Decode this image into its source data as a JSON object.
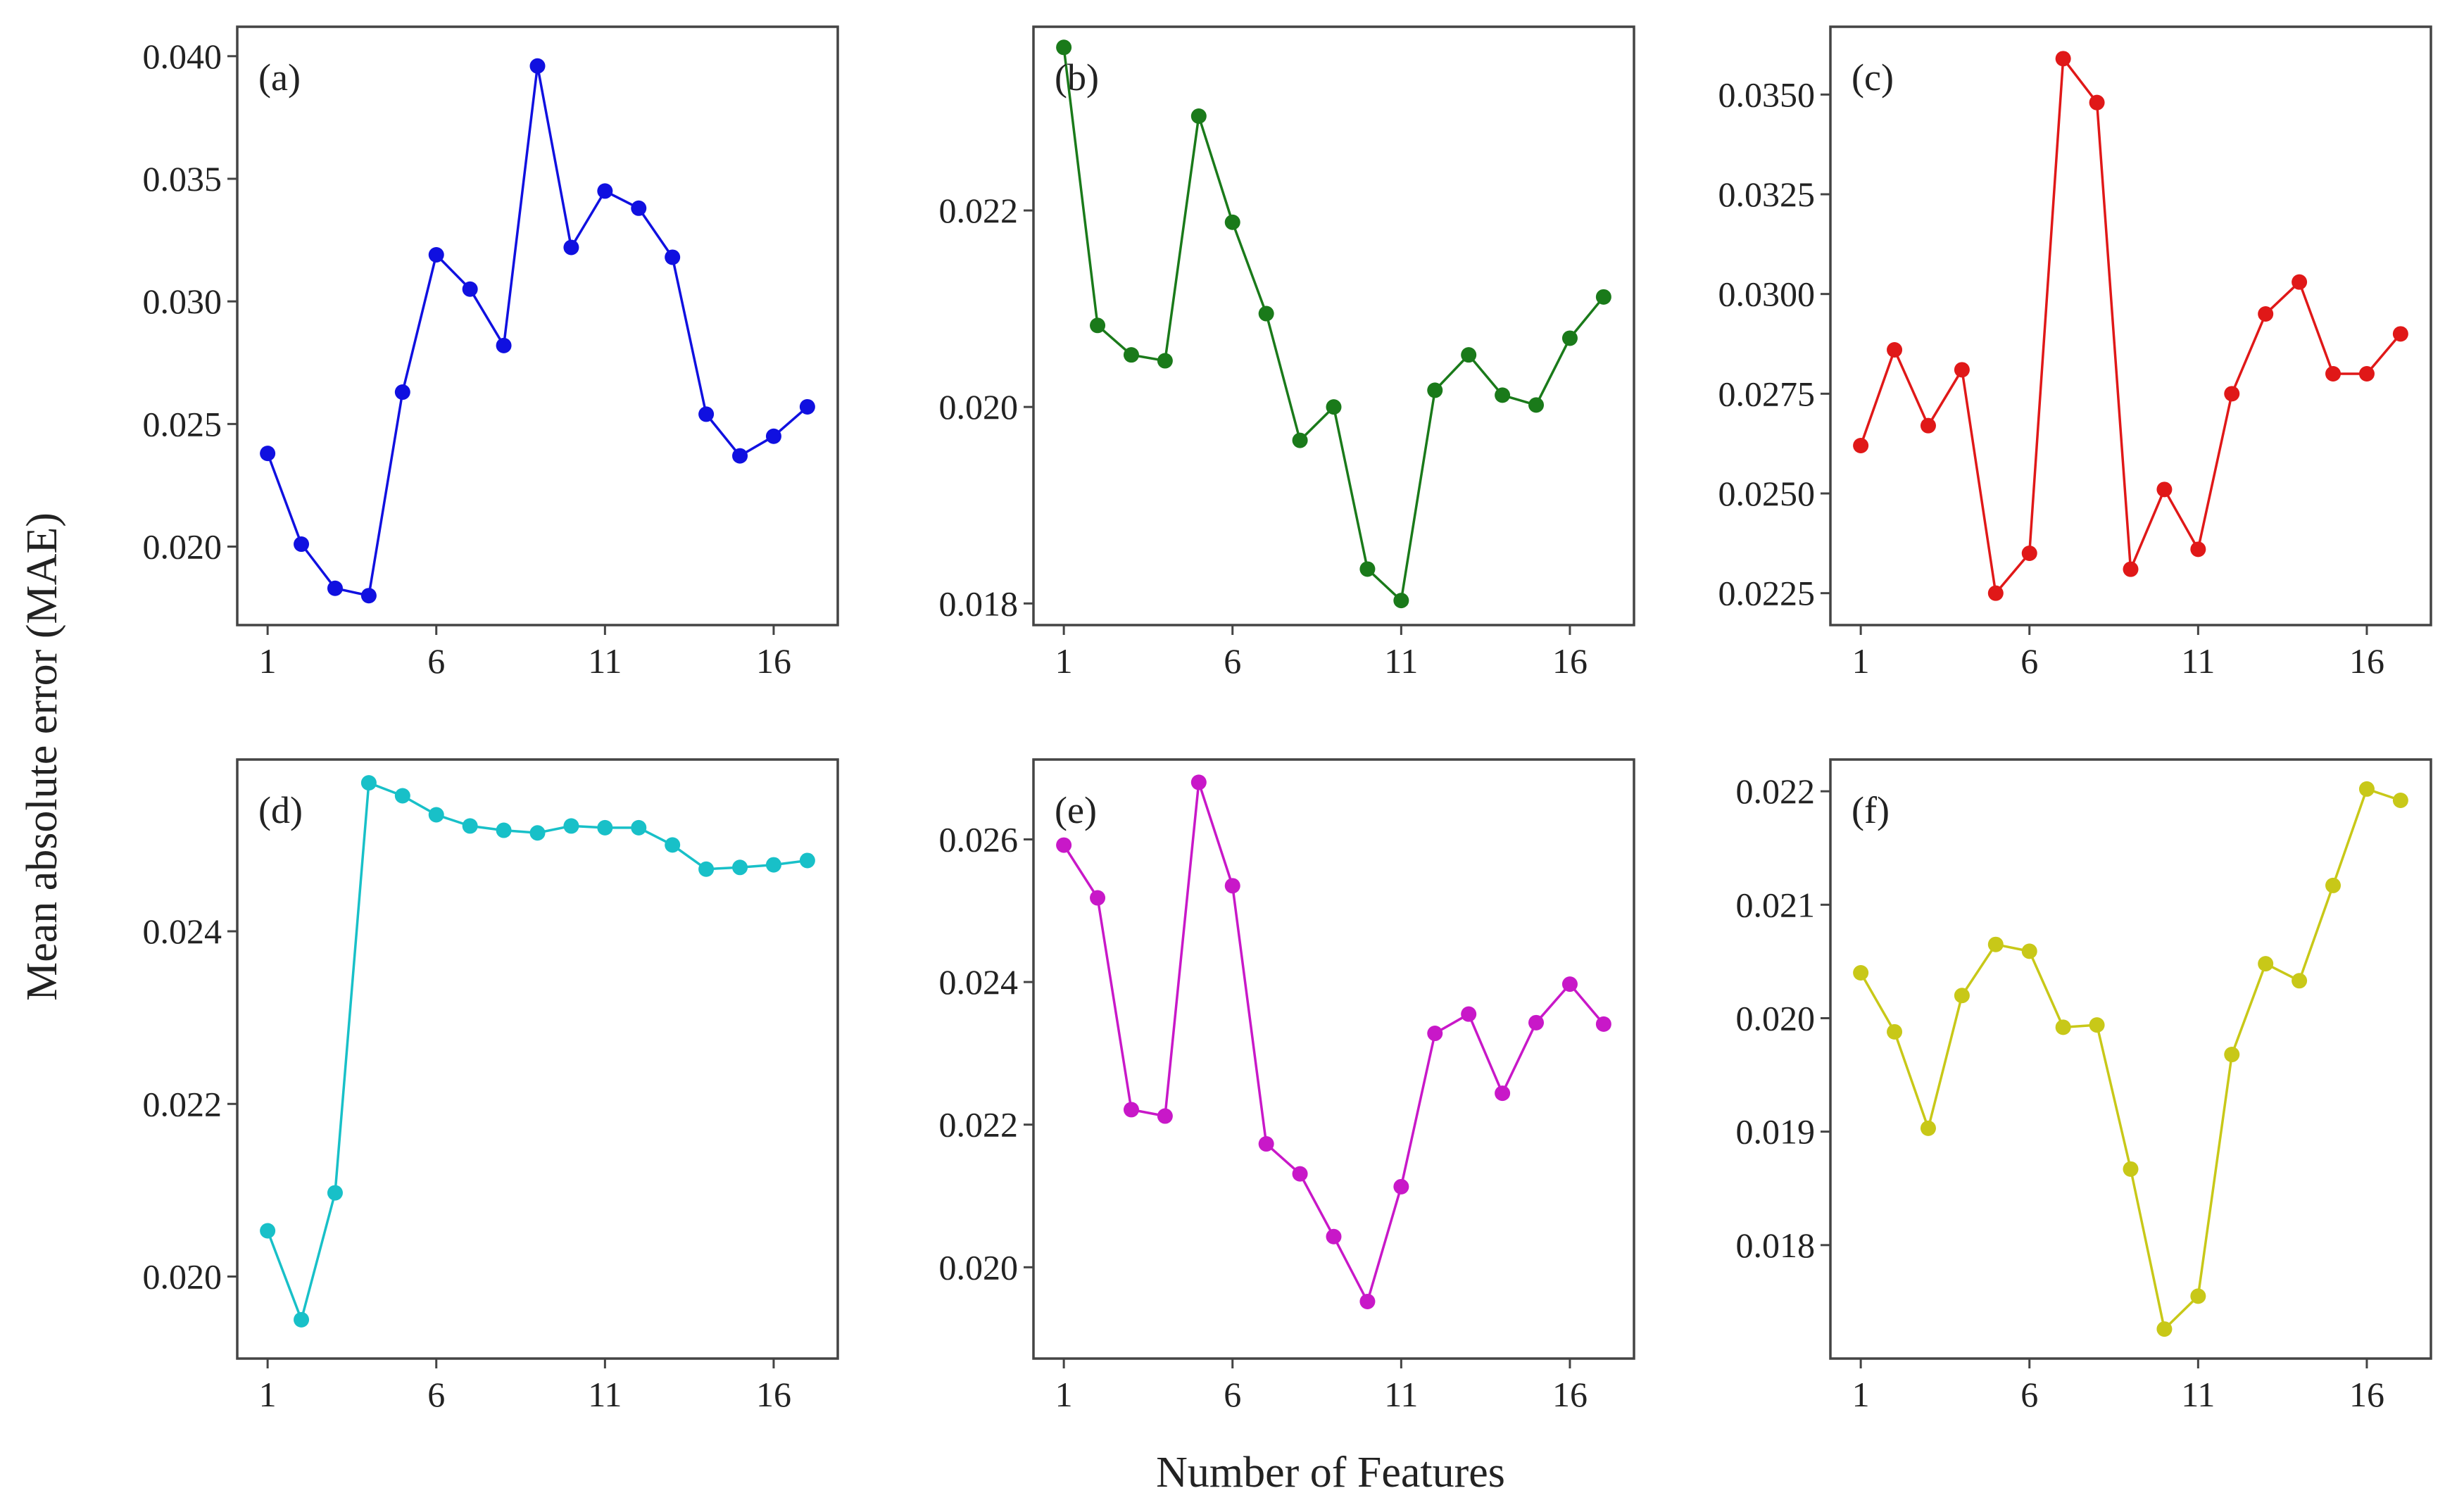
{
  "figure": {
    "xlabel": "Number  of  Features",
    "ylabel": "Mean absolute error (MAE)"
  },
  "chart_data": [
    {
      "type": "line",
      "title": "(a)",
      "color": "#1010e0",
      "x": [
        1,
        2,
        3,
        4,
        5,
        6,
        7,
        8,
        9,
        10,
        11,
        12,
        13,
        14,
        15,
        16,
        17
      ],
      "values": [
        0.0238,
        0.0201,
        0.0183,
        0.018,
        0.0263,
        0.0319,
        0.0305,
        0.0282,
        0.0396,
        0.0322,
        0.0345,
        0.0338,
        0.0318,
        0.0254,
        0.0237,
        0.0245,
        0.0257
      ],
      "xlim": [
        0.1,
        17.9
      ],
      "ylim": [
        0.0168,
        0.0412
      ],
      "xticks": [
        1,
        6,
        11,
        16
      ],
      "xtick_labels": [
        "1",
        "6",
        "11",
        "16"
      ],
      "yticks": [
        0.02,
        0.025,
        0.03,
        0.035,
        0.04
      ],
      "ytick_labels": [
        "0.020",
        "0.025",
        "0.030",
        "0.035",
        "0.040"
      ]
    },
    {
      "type": "line",
      "title": "(b)",
      "color": "#1a7a1a",
      "x": [
        1,
        2,
        3,
        4,
        5,
        6,
        7,
        8,
        9,
        10,
        11,
        12,
        13,
        14,
        15,
        16,
        17
      ],
      "values": [
        0.02366,
        0.02083,
        0.02053,
        0.02047,
        0.02296,
        0.02188,
        0.02095,
        0.01966,
        0.02,
        0.01835,
        0.01803,
        0.02017,
        0.02053,
        0.02012,
        0.02002,
        0.0207,
        0.02112
      ],
      "xlim": [
        0.1,
        17.9
      ],
      "ylim": [
        0.01778,
        0.02387
      ],
      "xticks": [
        1,
        6,
        11,
        16
      ],
      "xtick_labels": [
        "1",
        "6",
        "11",
        "16"
      ],
      "yticks": [
        0.018,
        0.02,
        0.022
      ],
      "ytick_labels": [
        "0.018",
        "0.020",
        "0.022"
      ]
    },
    {
      "type": "line",
      "title": "(c)",
      "color": "#e01818",
      "x": [
        1,
        2,
        3,
        4,
        5,
        6,
        7,
        8,
        9,
        10,
        11,
        12,
        13,
        14,
        15,
        16,
        17
      ],
      "values": [
        0.0262,
        0.0286,
        0.0267,
        0.0281,
        0.0225,
        0.0235,
        0.0359,
        0.0348,
        0.0231,
        0.0251,
        0.0236,
        0.0275,
        0.0295,
        0.0303,
        0.028,
        0.028,
        0.029
      ],
      "xlim": [
        0.1,
        17.9
      ],
      "ylim": [
        0.0217,
        0.0367
      ],
      "xticks": [
        1,
        6,
        11,
        16
      ],
      "xtick_labels": [
        "1",
        "6",
        "11",
        "16"
      ],
      "yticks": [
        0.0225,
        0.025,
        0.0275,
        0.03,
        0.0325,
        0.035
      ],
      "ytick_labels": [
        "0.0225",
        "0.0250",
        "0.0275",
        "0.0300",
        "0.0325",
        "0.0350"
      ]
    },
    {
      "type": "line",
      "title": "(d)",
      "color": "#18c0c8",
      "x": [
        1,
        2,
        3,
        4,
        5,
        6,
        7,
        8,
        9,
        10,
        11,
        12,
        13,
        14,
        15,
        16,
        17
      ],
      "values": [
        0.02053,
        0.0195,
        0.02097,
        0.02572,
        0.02557,
        0.02535,
        0.02522,
        0.02517,
        0.02514,
        0.02522,
        0.0252,
        0.0252,
        0.025,
        0.02472,
        0.02474,
        0.02477,
        0.02482
      ],
      "xlim": [
        0.1,
        17.9
      ],
      "ylim": [
        0.01905,
        0.02599
      ],
      "xticks": [
        1,
        6,
        11,
        16
      ],
      "xtick_labels": [
        "1",
        "6",
        "11",
        "16"
      ],
      "yticks": [
        0.02,
        0.022,
        0.024
      ],
      "ytick_labels": [
        "0.020",
        "0.022",
        "0.024"
      ]
    },
    {
      "type": "line",
      "title": "(e)",
      "color": "#c818c8",
      "x": [
        1,
        2,
        3,
        4,
        5,
        6,
        7,
        8,
        9,
        10,
        11,
        12,
        13,
        14,
        15,
        16,
        17
      ],
      "values": [
        0.02592,
        0.02518,
        0.02221,
        0.02212,
        0.0268,
        0.02535,
        0.02173,
        0.02131,
        0.02043,
        0.01952,
        0.02113,
        0.02328,
        0.02355,
        0.02244,
        0.02343,
        0.02397,
        0.02341
      ],
      "xlim": [
        0.1,
        17.9
      ],
      "ylim": [
        0.01872,
        0.02712
      ],
      "xticks": [
        1,
        6,
        11,
        16
      ],
      "xtick_labels": [
        "1",
        "6",
        "11",
        "16"
      ],
      "yticks": [
        0.02,
        0.022,
        0.024,
        0.026
      ],
      "ytick_labels": [
        "0.020",
        "0.022",
        "0.024",
        "0.026"
      ]
    },
    {
      "type": "line",
      "title": "(f)",
      "color": "#c8c818",
      "x": [
        1,
        2,
        3,
        4,
        5,
        6,
        7,
        8,
        9,
        10,
        11,
        12,
        13,
        14,
        15,
        16,
        17
      ],
      "values": [
        0.0204,
        0.01988,
        0.01903,
        0.0202,
        0.02065,
        0.02059,
        0.01992,
        0.01994,
        0.01867,
        0.01726,
        0.01755,
        0.01968,
        0.02048,
        0.02033,
        0.02117,
        0.02202,
        0.02192
      ],
      "xlim": [
        0.1,
        17.9
      ],
      "ylim": [
        0.017,
        0.02228
      ],
      "xticks": [
        1,
        6,
        11,
        16
      ],
      "xtick_labels": [
        "1",
        "6",
        "11",
        "16"
      ],
      "yticks": [
        0.018,
        0.019,
        0.02,
        0.021,
        0.022
      ],
      "ytick_labels": [
        "0.018",
        "0.019",
        "0.020",
        "0.021",
        "0.022"
      ]
    }
  ]
}
